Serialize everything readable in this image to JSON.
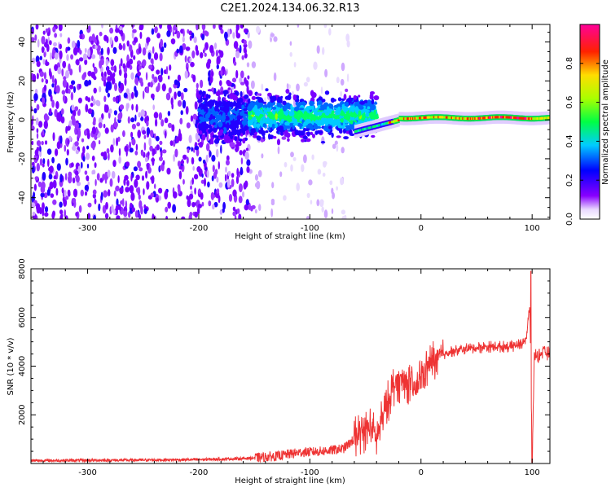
{
  "title": "C2E1.2024.134.06.32.R13",
  "chart_data": [
    {
      "type": "heatmap",
      "xlabel": "Height of straight line (km)",
      "ylabel": "Frequency (Hz)",
      "xlim": [
        -351,
        116
      ],
      "ylim": [
        -51,
        49
      ],
      "xticks": [
        -300,
        -200,
        -100,
        0,
        100
      ],
      "yticks": [
        -40,
        -20,
        0,
        20,
        40
      ],
      "colorbar": {
        "label": "Normalized spectral amplitude",
        "range": [
          0,
          1
        ],
        "ticks": [
          "0.0",
          "0.2",
          "0.4",
          "0.6",
          "0.8"
        ],
        "colormap": "rainbow (white-purple-blue-cyan-green-yellow-red-magenta)"
      },
      "features": [
        {
          "x_range": [
            -351,
            -155
          ],
          "description": "broadband noise across all frequencies"
        },
        {
          "x_range": [
            -155,
            -40
          ],
          "freq_center": 2,
          "description": "strong signal band, cyan/green peaks"
        },
        {
          "x_range": [
            -40,
            116
          ],
          "freq_center": 1,
          "description": "narrow carrier line, peaks up to red near -20 to 100 km"
        }
      ]
    },
    {
      "type": "line",
      "xlabel": "Height of straight line (km)",
      "ylabel": "SNR (10 * v/v)",
      "xlim": [
        -351,
        116
      ],
      "ylim": [
        0,
        8000
      ],
      "xticks": [
        -300,
        -200,
        -100,
        0,
        100
      ],
      "yticks": [
        2000,
        4000,
        6000,
        8000
      ],
      "color": "#ee3333",
      "series": [
        {
          "x": [
            -351,
            -300,
            -250,
            -200,
            -160,
            -130,
            -110,
            -90,
            -70,
            -55,
            -45,
            -40,
            -35,
            -25,
            -15,
            -5,
            0,
            10,
            25,
            40,
            60,
            80,
            90,
            95,
            98,
            100,
            102,
            105,
            110,
            116
          ],
          "values": [
            120,
            130,
            140,
            160,
            200,
            300,
            450,
            500,
            600,
            1200,
            1500,
            1000,
            1800,
            3200,
            3500,
            3000,
            3600,
            4200,
            4600,
            4700,
            4800,
            4800,
            4900,
            5200,
            6500,
            100,
            4500,
            4400,
            4600,
            4500
          ]
        }
      ]
    }
  ]
}
